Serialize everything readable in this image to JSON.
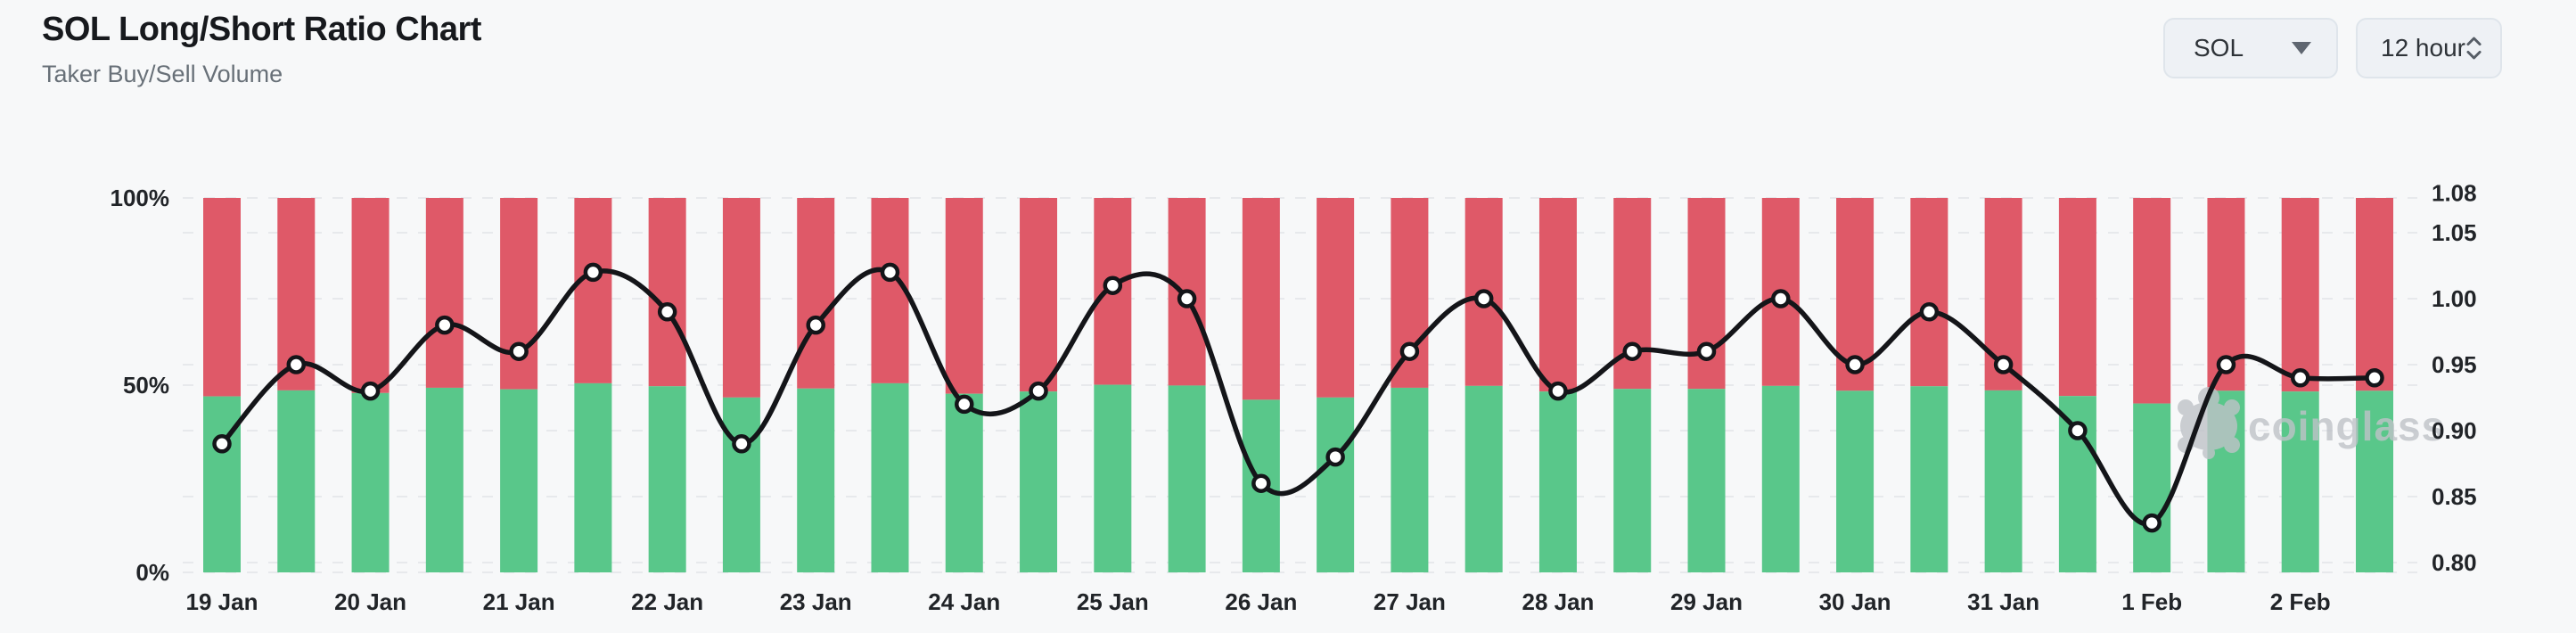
{
  "header": {
    "title": "SOL Long/Short Ratio Chart",
    "subtitle": "Taker Buy/Sell Volume"
  },
  "controls": {
    "symbol": "SOL",
    "interval": "12 hour"
  },
  "watermark": {
    "text": "coinglass"
  },
  "colors": {
    "background": "#f7f8f9",
    "buy_green": "#59c78a",
    "sell_red": "#df5968",
    "ratio_line": "#141519",
    "point_fill": "#ffffff",
    "grid": "#e7e9ec",
    "axis_text": "#212428",
    "watermark_gray": "#bfc3c8"
  },
  "chart_data": {
    "type": "bar",
    "subtype": "stacked-percent-bars-with-ratio-line",
    "title": "SOL Long/Short Ratio Chart",
    "subtitle": "Taker Buy/Sell Volume",
    "interval": "12 hour",
    "x_labels": [
      "19 Jan",
      "20 Jan",
      "21 Jan",
      "22 Jan",
      "23 Jan",
      "24 Jan",
      "25 Jan",
      "26 Jan",
      "27 Jan",
      "28 Jan",
      "29 Jan",
      "30 Jan",
      "31 Jan",
      "1 Feb",
      "2 Feb"
    ],
    "bars_per_label": 2,
    "series": [
      {
        "name": "Taker Buy Volume %",
        "type": "bar",
        "color_key": "buy_green",
        "values": [
          47.0,
          48.6,
          47.9,
          49.3,
          48.9,
          50.5,
          49.7,
          46.7,
          49.1,
          50.5,
          47.7,
          48.3,
          50.1,
          49.9,
          46.1,
          46.7,
          49.3,
          49.8,
          48.3,
          49.0,
          49.0,
          49.8,
          48.5,
          49.7,
          48.6,
          47.1,
          45.1,
          48.5,
          48.3,
          48.5
        ]
      },
      {
        "name": "Taker Sell Volume %",
        "type": "bar",
        "color_key": "sell_red",
        "values": [
          53.0,
          51.4,
          52.1,
          50.7,
          51.1,
          49.5,
          50.3,
          53.3,
          50.9,
          49.5,
          52.3,
          51.7,
          49.9,
          50.1,
          53.9,
          53.3,
          50.7,
          50.2,
          51.7,
          51.0,
          51.0,
          50.2,
          51.5,
          50.3,
          51.4,
          52.9,
          54.9,
          51.5,
          51.7,
          51.5
        ]
      },
      {
        "name": "Long/Short Ratio",
        "type": "line",
        "color_key": "ratio_line",
        "values": [
          0.89,
          0.95,
          0.93,
          0.98,
          0.96,
          1.02,
          0.99,
          0.89,
          0.98,
          1.02,
          0.92,
          0.93,
          1.01,
          1.0,
          0.86,
          0.88,
          0.96,
          1.0,
          0.93,
          0.96,
          0.96,
          1.0,
          0.95,
          0.99,
          0.95,
          0.9,
          0.83,
          0.95,
          0.94,
          0.94
        ]
      }
    ],
    "left_axis": {
      "tick_labels": [
        "100%",
        "50%",
        "0%"
      ],
      "tick_values": [
        100,
        50,
        0
      ],
      "min": 0,
      "max": 100
    },
    "right_axis": {
      "tick_labels": [
        "1.08",
        "1.05",
        "1.00",
        "0.95",
        "0.90",
        "0.85",
        "0.80"
      ],
      "tick_values": [
        1.08,
        1.05,
        1.0,
        0.95,
        0.9,
        0.85,
        0.8
      ],
      "min": 0.79,
      "max": 1.08
    },
    "grid": "horizontal-dashed"
  }
}
